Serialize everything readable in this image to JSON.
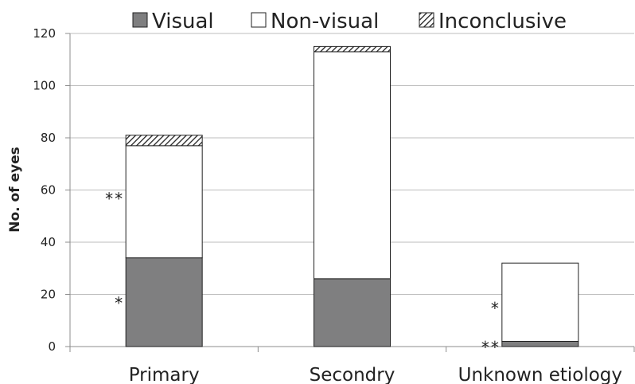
{
  "chart_data": {
    "type": "bar",
    "stacked": true,
    "ylabel": "No. of eyes",
    "ylim": [
      0,
      120
    ],
    "yticks": [
      0,
      20,
      40,
      60,
      80,
      100,
      120
    ],
    "grid": true,
    "legend_position": "top",
    "categories": [
      "Primary",
      "Secondry",
      "Unknown etiology"
    ],
    "series": [
      {
        "name": "Visual",
        "values": [
          34,
          26,
          2
        ],
        "fill": "#7f7f80",
        "pattern": "solid"
      },
      {
        "name": "Non-visual",
        "values": [
          43,
          87,
          30
        ],
        "fill": "#ffffff",
        "pattern": "solid"
      },
      {
        "name": "Inconclusive",
        "values": [
          4,
          2,
          0
        ],
        "fill": "#ffffff",
        "pattern": "hatch"
      }
    ],
    "annotations": [
      {
        "text": "**",
        "category": "Primary",
        "value": 57
      },
      {
        "text": "*",
        "category": "Primary",
        "value": 17
      },
      {
        "text": "*",
        "category": "Unknown etiology",
        "value": 15
      },
      {
        "text": "**",
        "category": "Unknown etiology",
        "value": 0
      }
    ]
  }
}
